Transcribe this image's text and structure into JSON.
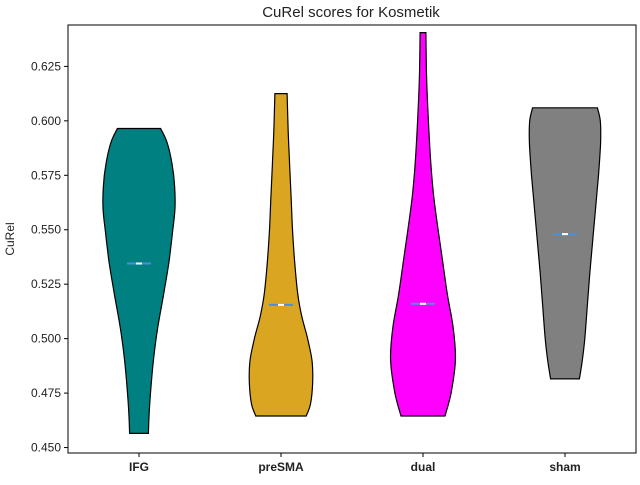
{
  "chart_data": {
    "type": "violin",
    "title": "CuRel scores for Kosmetik",
    "xlabel": "",
    "ylabel": "CuRel",
    "ylim": [
      0.4475,
      0.644
    ],
    "yticks": [
      "0.450",
      "0.475",
      "0.500",
      "0.525",
      "0.550",
      "0.575",
      "0.600",
      "0.625"
    ],
    "grid": false,
    "categories": [
      "IFG",
      "preSMA",
      "dual",
      "sham"
    ],
    "colors": [
      "#008080",
      "#DAA520",
      "#FF00FF",
      "#808080"
    ],
    "median_color": "#4c8fd6",
    "series": [
      {
        "category": "IFG",
        "min": 0.4565,
        "max": 0.5965,
        "median": 0.5345,
        "density_profile": [
          [
            0.4565,
            0.26
          ],
          [
            0.465,
            0.28
          ],
          [
            0.475,
            0.32
          ],
          [
            0.49,
            0.4
          ],
          [
            0.505,
            0.52
          ],
          [
            0.52,
            0.68
          ],
          [
            0.535,
            0.83
          ],
          [
            0.55,
            0.94
          ],
          [
            0.56,
            1.0
          ],
          [
            0.57,
            0.99
          ],
          [
            0.58,
            0.92
          ],
          [
            0.59,
            0.78
          ],
          [
            0.5965,
            0.6
          ]
        ]
      },
      {
        "category": "preSMA",
        "min": 0.4645,
        "max": 0.6125,
        "median": 0.5155,
        "density_profile": [
          [
            0.4645,
            0.7
          ],
          [
            0.47,
            0.82
          ],
          [
            0.48,
            0.88
          ],
          [
            0.49,
            0.86
          ],
          [
            0.5,
            0.74
          ],
          [
            0.51,
            0.58
          ],
          [
            0.52,
            0.47
          ],
          [
            0.535,
            0.38
          ],
          [
            0.55,
            0.32
          ],
          [
            0.565,
            0.28
          ],
          [
            0.58,
            0.24
          ],
          [
            0.595,
            0.2
          ],
          [
            0.6125,
            0.17
          ]
        ]
      },
      {
        "category": "dual",
        "min": 0.4645,
        "max": 0.6405,
        "median": 0.516,
        "density_profile": [
          [
            0.4645,
            0.61
          ],
          [
            0.475,
            0.78
          ],
          [
            0.49,
            0.9
          ],
          [
            0.505,
            0.84
          ],
          [
            0.52,
            0.68
          ],
          [
            0.535,
            0.55
          ],
          [
            0.55,
            0.42
          ],
          [
            0.565,
            0.3
          ],
          [
            0.58,
            0.22
          ],
          [
            0.6,
            0.15
          ],
          [
            0.62,
            0.1
          ],
          [
            0.6405,
            0.08
          ]
        ]
      },
      {
        "category": "sham",
        "min": 0.4815,
        "max": 0.606,
        "median": 0.548,
        "density_profile": [
          [
            0.4815,
            0.4
          ],
          [
            0.49,
            0.48
          ],
          [
            0.5,
            0.55
          ],
          [
            0.515,
            0.62
          ],
          [
            0.53,
            0.69
          ],
          [
            0.545,
            0.77
          ],
          [
            0.56,
            0.85
          ],
          [
            0.575,
            0.93
          ],
          [
            0.59,
            0.99
          ],
          [
            0.6,
            0.98
          ],
          [
            0.606,
            0.9
          ]
        ]
      }
    ]
  }
}
